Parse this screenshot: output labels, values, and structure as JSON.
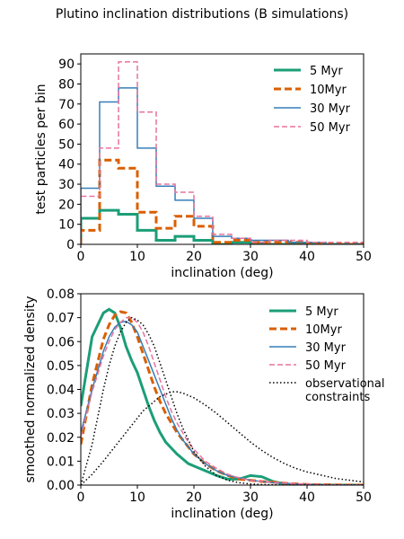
{
  "figure_title": "Plutino inclination distributions (B simulations)",
  "chart_data": [
    {
      "type": "histogram",
      "xlabel": "inclination (deg)",
      "ylabel": "test particles per bin",
      "xlim": [
        0,
        50
      ],
      "ylim": [
        0,
        95
      ],
      "xticks": [
        0,
        10,
        20,
        30,
        40,
        50
      ],
      "yticks": [
        0,
        10,
        20,
        30,
        40,
        50,
        60,
        70,
        80,
        90
      ],
      "grid": false,
      "legend_position": "top-right",
      "bin_edges": [
        0,
        3.33,
        6.67,
        10,
        13.33,
        16.67,
        20,
        23.33,
        26.67,
        30,
        33.33,
        36.67,
        40,
        43.33,
        46.67,
        50
      ],
      "series": [
        {
          "name": "5 Myr",
          "color": "#1b9e77",
          "style": "solid",
          "width": "thick",
          "values": [
            13,
            17,
            15,
            7,
            2,
            4,
            2,
            0,
            1,
            0,
            0,
            0,
            0,
            0,
            0
          ]
        },
        {
          "name": "10Myr",
          "color": "#d95f02",
          "style": "dashed",
          "width": "thick",
          "values": [
            7,
            42,
            38,
            16,
            8,
            14,
            9,
            1,
            2,
            1,
            1,
            1,
            0,
            0,
            0
          ]
        },
        {
          "name": "30 Myr",
          "color": "#377eb8",
          "style": "solid",
          "width": "thin",
          "values": [
            28,
            71,
            78,
            48,
            29,
            22,
            13,
            4,
            3,
            2,
            2,
            1,
            1,
            0,
            0
          ]
        },
        {
          "name": "50 Myr",
          "color": "#e7739e",
          "style": "dashed",
          "width": "thin",
          "values": [
            24,
            48,
            91,
            66,
            30,
            26,
            14,
            5,
            3,
            1,
            2,
            2,
            1,
            1,
            1
          ]
        }
      ]
    },
    {
      "type": "line",
      "xlabel": "inclination (deg)",
      "ylabel": "smoothed normalized density",
      "xlim": [
        0,
        50
      ],
      "ylim": [
        0,
        0.08
      ],
      "xticks": [
        0,
        10,
        20,
        30,
        40,
        50
      ],
      "yticks": [
        0.0,
        0.01,
        0.02,
        0.03,
        0.04,
        0.05,
        0.06,
        0.07,
        0.08
      ],
      "grid": false,
      "legend_position": "top-right",
      "x": [
        0,
        2,
        4,
        5,
        6,
        7,
        8,
        9,
        10,
        11,
        12,
        13,
        14,
        15,
        16,
        17,
        18,
        19,
        20,
        22,
        24,
        26,
        28,
        30,
        32,
        34,
        36,
        38,
        40,
        45,
        50
      ],
      "series": [
        {
          "name": "5 Myr",
          "color": "#1b9e77",
          "style": "solid",
          "width": "thick",
          "values": [
            0.033,
            0.062,
            0.072,
            0.0735,
            0.072,
            0.066,
            0.058,
            0.052,
            0.047,
            0.04,
            0.033,
            0.027,
            0.022,
            0.018,
            0.0155,
            0.013,
            0.011,
            0.009,
            0.008,
            0.006,
            0.004,
            0.0025,
            0.0025,
            0.004,
            0.0035,
            0.0015,
            0.0005,
            0.0002,
            0.0001,
            0,
            0
          ]
        },
        {
          "name": "10Myr",
          "color": "#d95f02",
          "style": "dashed",
          "width": "thick",
          "values": [
            0.017,
            0.042,
            0.061,
            0.067,
            0.071,
            0.0725,
            0.072,
            0.068,
            0.062,
            0.055,
            0.048,
            0.041,
            0.035,
            0.03,
            0.026,
            0.022,
            0.019,
            0.016,
            0.013,
            0.009,
            0.006,
            0.004,
            0.0025,
            0.002,
            0.0015,
            0.0012,
            0.0008,
            0.0005,
            0.0003,
            0.0001,
            0
          ]
        },
        {
          "name": "30 Myr",
          "color": "#377eb8",
          "style": "solid",
          "width": "thin",
          "values": [
            0.022,
            0.04,
            0.056,
            0.062,
            0.066,
            0.068,
            0.0685,
            0.067,
            0.064,
            0.058,
            0.052,
            0.046,
            0.04,
            0.034,
            0.028,
            0.023,
            0.019,
            0.016,
            0.013,
            0.009,
            0.006,
            0.004,
            0.003,
            0.002,
            0.0015,
            0.001,
            0.0007,
            0.0005,
            0.0003,
            0.0001,
            0
          ]
        },
        {
          "name": "50 Myr",
          "color": "#e7739e",
          "style": "dashed",
          "width": "thin",
          "values": [
            0.02,
            0.039,
            0.054,
            0.06,
            0.065,
            0.068,
            0.07,
            0.07,
            0.068,
            0.064,
            0.058,
            0.051,
            0.044,
            0.037,
            0.031,
            0.026,
            0.022,
            0.018,
            0.015,
            0.01,
            0.007,
            0.0045,
            0.003,
            0.002,
            0.0015,
            0.0012,
            0.0009,
            0.0006,
            0.0004,
            0.0001,
            0
          ]
        },
        {
          "name": "observational\nconstraints",
          "color": "#000000",
          "style": "dotted",
          "width": "thin",
          "two_curves": true,
          "values": [
            0,
            0.017,
            0.04,
            0.05,
            0.058,
            0.064,
            0.068,
            0.07,
            0.069,
            0.067,
            0.063,
            0.058,
            0.051,
            0.044,
            0.037,
            0.03,
            0.024,
            0.019,
            0.014,
            0.008,
            0.004,
            0.002,
            0.001,
            0.0005,
            0.0002,
            0.0001,
            0,
            0,
            0,
            0,
            0
          ],
          "values_2": [
            0,
            0.0045,
            0.01,
            0.013,
            0.016,
            0.019,
            0.022,
            0.025,
            0.028,
            0.031,
            0.033,
            0.035,
            0.037,
            0.038,
            0.039,
            0.039,
            0.0385,
            0.0375,
            0.0365,
            0.0335,
            0.03,
            0.026,
            0.022,
            0.018,
            0.0145,
            0.0115,
            0.009,
            0.007,
            0.0055,
            0.0028,
            0.0013
          ]
        }
      ]
    }
  ]
}
